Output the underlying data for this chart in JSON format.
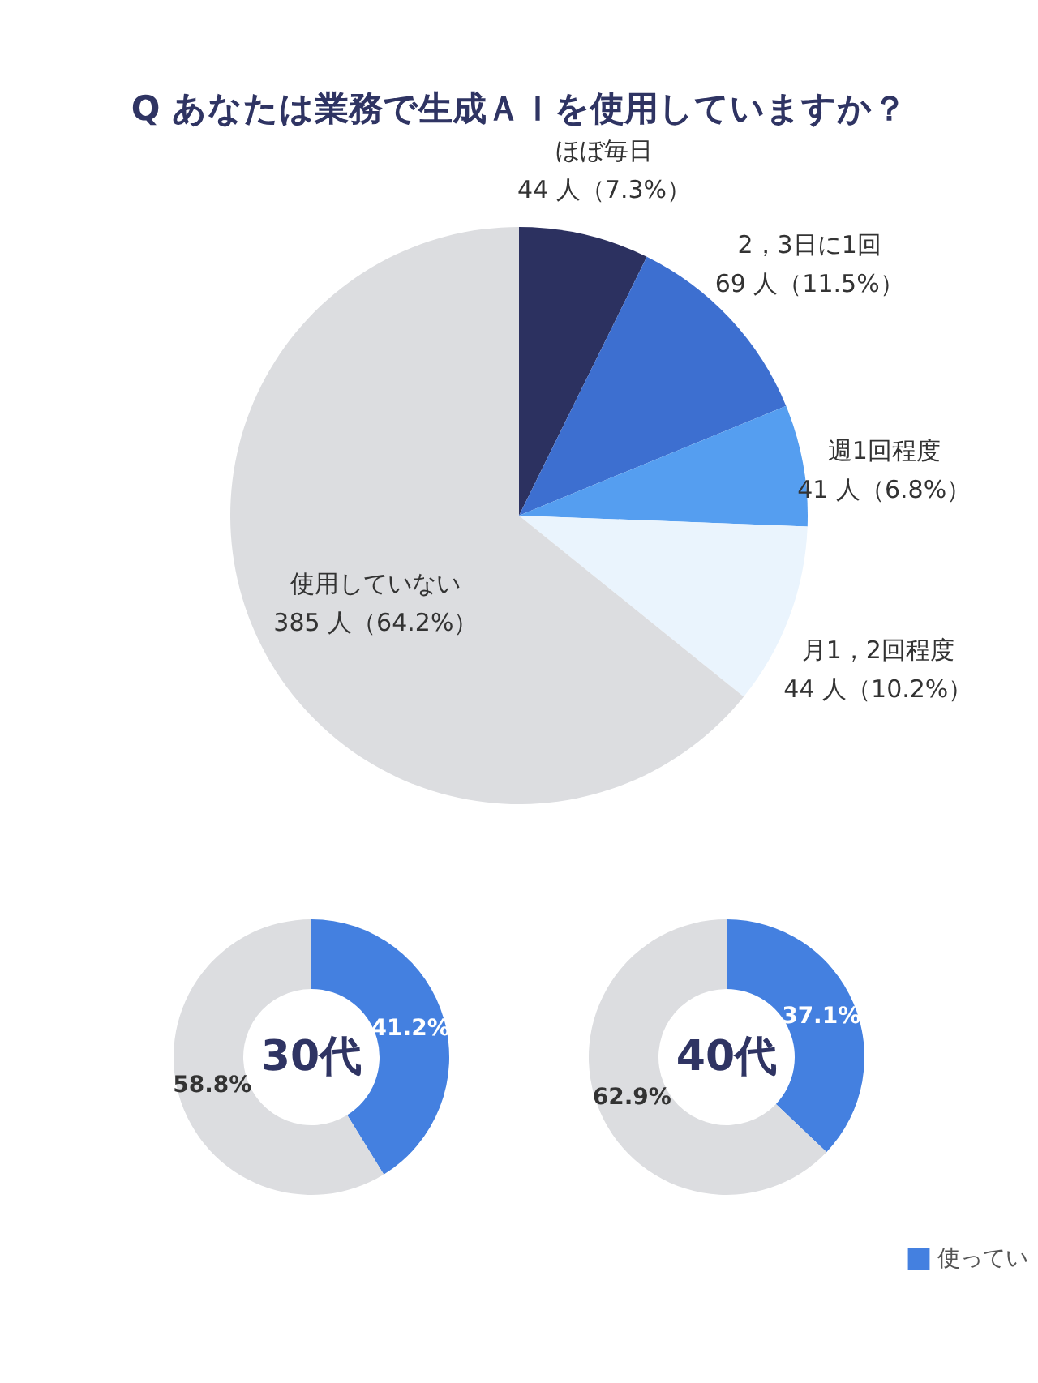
{
  "chart_data": [
    {
      "type": "pie",
      "title": "Q あなたは業務で生成ＡＩを使用していますか？",
      "categories": [
        "ほぼ毎日",
        "2，3日に1回",
        "週1回程度",
        "月1，2回程度",
        "使用していない"
      ],
      "values": [
        7.3,
        11.5,
        6.8,
        10.2,
        64.2
      ],
      "colors": [
        "#2c3160",
        "#3d6fd0",
        "#559ef0",
        "#eaf4fd",
        "#dcdde0"
      ],
      "value_labels": [
        "44 人（7.3%）",
        "69 人（11.5%）",
        "41 人（6.8%）",
        "44 人（10.2%）",
        "385 人（64.2%）"
      ]
    },
    {
      "type": "donut",
      "title": "30代",
      "categories": [
        null,
        null
      ],
      "values": [
        41.2,
        58.8
      ],
      "colors": [
        "#4480e0",
        "#dcdde0"
      ],
      "value_labels": [
        "41.2%",
        "58.8%"
      ]
    },
    {
      "type": "donut",
      "title": "40代",
      "categories": [
        "使ってい",
        null
      ],
      "values": [
        37.1,
        62.9
      ],
      "colors": [
        "#4480e0",
        "#dcdde0"
      ],
      "value_labels": [
        "37.1%",
        "62.9%"
      ],
      "legend": "bottom right"
    }
  ]
}
